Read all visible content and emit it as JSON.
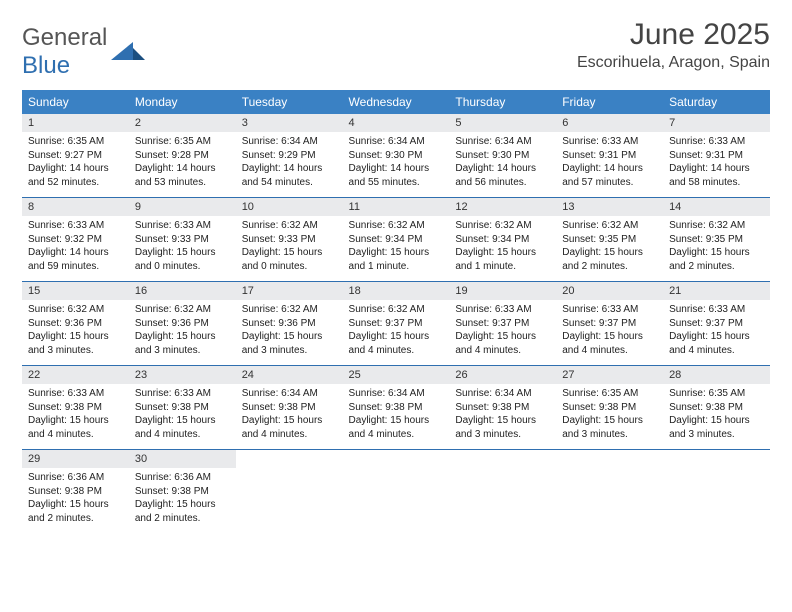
{
  "brand": {
    "word1": "General",
    "word2": "Blue"
  },
  "title": "June 2025",
  "location": "Escorihuela, Aragon, Spain",
  "colors": {
    "header_bg": "#3a81c4",
    "header_text": "#ffffff",
    "daynum_bg": "#e9eaec",
    "rule": "#2f6fb0",
    "brand_blue": "#2f6fb0",
    "brand_grey": "#555555"
  },
  "weekdays": [
    "Sunday",
    "Monday",
    "Tuesday",
    "Wednesday",
    "Thursday",
    "Friday",
    "Saturday"
  ],
  "weeks": [
    [
      {
        "n": "1",
        "sr": "Sunrise: 6:35 AM",
        "ss": "Sunset: 9:27 PM",
        "dl": "Daylight: 14 hours and 52 minutes."
      },
      {
        "n": "2",
        "sr": "Sunrise: 6:35 AM",
        "ss": "Sunset: 9:28 PM",
        "dl": "Daylight: 14 hours and 53 minutes."
      },
      {
        "n": "3",
        "sr": "Sunrise: 6:34 AM",
        "ss": "Sunset: 9:29 PM",
        "dl": "Daylight: 14 hours and 54 minutes."
      },
      {
        "n": "4",
        "sr": "Sunrise: 6:34 AM",
        "ss": "Sunset: 9:30 PM",
        "dl": "Daylight: 14 hours and 55 minutes."
      },
      {
        "n": "5",
        "sr": "Sunrise: 6:34 AM",
        "ss": "Sunset: 9:30 PM",
        "dl": "Daylight: 14 hours and 56 minutes."
      },
      {
        "n": "6",
        "sr": "Sunrise: 6:33 AM",
        "ss": "Sunset: 9:31 PM",
        "dl": "Daylight: 14 hours and 57 minutes."
      },
      {
        "n": "7",
        "sr": "Sunrise: 6:33 AM",
        "ss": "Sunset: 9:31 PM",
        "dl": "Daylight: 14 hours and 58 minutes."
      }
    ],
    [
      {
        "n": "8",
        "sr": "Sunrise: 6:33 AM",
        "ss": "Sunset: 9:32 PM",
        "dl": "Daylight: 14 hours and 59 minutes."
      },
      {
        "n": "9",
        "sr": "Sunrise: 6:33 AM",
        "ss": "Sunset: 9:33 PM",
        "dl": "Daylight: 15 hours and 0 minutes."
      },
      {
        "n": "10",
        "sr": "Sunrise: 6:32 AM",
        "ss": "Sunset: 9:33 PM",
        "dl": "Daylight: 15 hours and 0 minutes."
      },
      {
        "n": "11",
        "sr": "Sunrise: 6:32 AM",
        "ss": "Sunset: 9:34 PM",
        "dl": "Daylight: 15 hours and 1 minute."
      },
      {
        "n": "12",
        "sr": "Sunrise: 6:32 AM",
        "ss": "Sunset: 9:34 PM",
        "dl": "Daylight: 15 hours and 1 minute."
      },
      {
        "n": "13",
        "sr": "Sunrise: 6:32 AM",
        "ss": "Sunset: 9:35 PM",
        "dl": "Daylight: 15 hours and 2 minutes."
      },
      {
        "n": "14",
        "sr": "Sunrise: 6:32 AM",
        "ss": "Sunset: 9:35 PM",
        "dl": "Daylight: 15 hours and 2 minutes."
      }
    ],
    [
      {
        "n": "15",
        "sr": "Sunrise: 6:32 AM",
        "ss": "Sunset: 9:36 PM",
        "dl": "Daylight: 15 hours and 3 minutes."
      },
      {
        "n": "16",
        "sr": "Sunrise: 6:32 AM",
        "ss": "Sunset: 9:36 PM",
        "dl": "Daylight: 15 hours and 3 minutes."
      },
      {
        "n": "17",
        "sr": "Sunrise: 6:32 AM",
        "ss": "Sunset: 9:36 PM",
        "dl": "Daylight: 15 hours and 3 minutes."
      },
      {
        "n": "18",
        "sr": "Sunrise: 6:32 AM",
        "ss": "Sunset: 9:37 PM",
        "dl": "Daylight: 15 hours and 4 minutes."
      },
      {
        "n": "19",
        "sr": "Sunrise: 6:33 AM",
        "ss": "Sunset: 9:37 PM",
        "dl": "Daylight: 15 hours and 4 minutes."
      },
      {
        "n": "20",
        "sr": "Sunrise: 6:33 AM",
        "ss": "Sunset: 9:37 PM",
        "dl": "Daylight: 15 hours and 4 minutes."
      },
      {
        "n": "21",
        "sr": "Sunrise: 6:33 AM",
        "ss": "Sunset: 9:37 PM",
        "dl": "Daylight: 15 hours and 4 minutes."
      }
    ],
    [
      {
        "n": "22",
        "sr": "Sunrise: 6:33 AM",
        "ss": "Sunset: 9:38 PM",
        "dl": "Daylight: 15 hours and 4 minutes."
      },
      {
        "n": "23",
        "sr": "Sunrise: 6:33 AM",
        "ss": "Sunset: 9:38 PM",
        "dl": "Daylight: 15 hours and 4 minutes."
      },
      {
        "n": "24",
        "sr": "Sunrise: 6:34 AM",
        "ss": "Sunset: 9:38 PM",
        "dl": "Daylight: 15 hours and 4 minutes."
      },
      {
        "n": "25",
        "sr": "Sunrise: 6:34 AM",
        "ss": "Sunset: 9:38 PM",
        "dl": "Daylight: 15 hours and 4 minutes."
      },
      {
        "n": "26",
        "sr": "Sunrise: 6:34 AM",
        "ss": "Sunset: 9:38 PM",
        "dl": "Daylight: 15 hours and 3 minutes."
      },
      {
        "n": "27",
        "sr": "Sunrise: 6:35 AM",
        "ss": "Sunset: 9:38 PM",
        "dl": "Daylight: 15 hours and 3 minutes."
      },
      {
        "n": "28",
        "sr": "Sunrise: 6:35 AM",
        "ss": "Sunset: 9:38 PM",
        "dl": "Daylight: 15 hours and 3 minutes."
      }
    ],
    [
      {
        "n": "29",
        "sr": "Sunrise: 6:36 AM",
        "ss": "Sunset: 9:38 PM",
        "dl": "Daylight: 15 hours and 2 minutes."
      },
      {
        "n": "30",
        "sr": "Sunrise: 6:36 AM",
        "ss": "Sunset: 9:38 PM",
        "dl": "Daylight: 15 hours and 2 minutes."
      },
      null,
      null,
      null,
      null,
      null
    ]
  ]
}
